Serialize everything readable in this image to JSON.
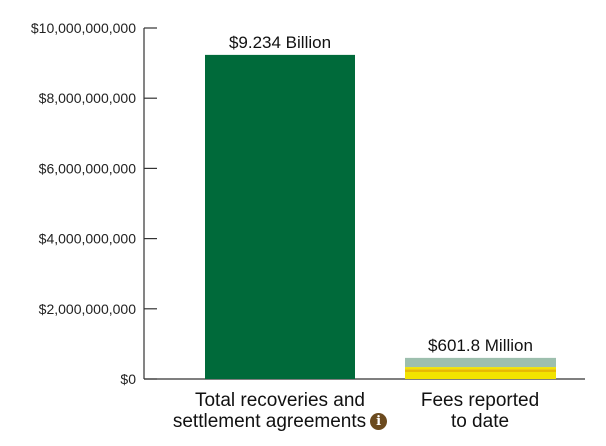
{
  "chart_data": {
    "type": "bar",
    "categories": [
      {
        "line1": "Total recoveries and",
        "line2": "settlement agreements"
      },
      {
        "line1": "Fees reported",
        "line2": "to date"
      }
    ],
    "values": [
      9234000000,
      601800000
    ],
    "stack_segments_bar2": [
      {
        "color": "#f2e300",
        "value": 200000000
      },
      {
        "color": "#e7b900",
        "value": 80000000
      },
      {
        "color": "#f2e300",
        "value": 60000000
      },
      {
        "color": "#9dbfae",
        "value": 261800000
      }
    ],
    "data_labels": [
      "$9.234 Billion",
      "$601.8 Million"
    ],
    "ylim": [
      0,
      10000000000
    ],
    "yticks": [
      0,
      2000000000,
      4000000000,
      6000000000,
      8000000000,
      10000000000
    ],
    "ytick_labels": [
      "$0",
      "$2,000,000,000",
      "$4,000,000,000",
      "$6,000,000,000",
      "$8,000,000,000",
      "$10,000,000,000"
    ],
    "grid": false,
    "bar1_color": "#006a3a",
    "axis_color": "#333333",
    "info_icon": "info-icon"
  }
}
